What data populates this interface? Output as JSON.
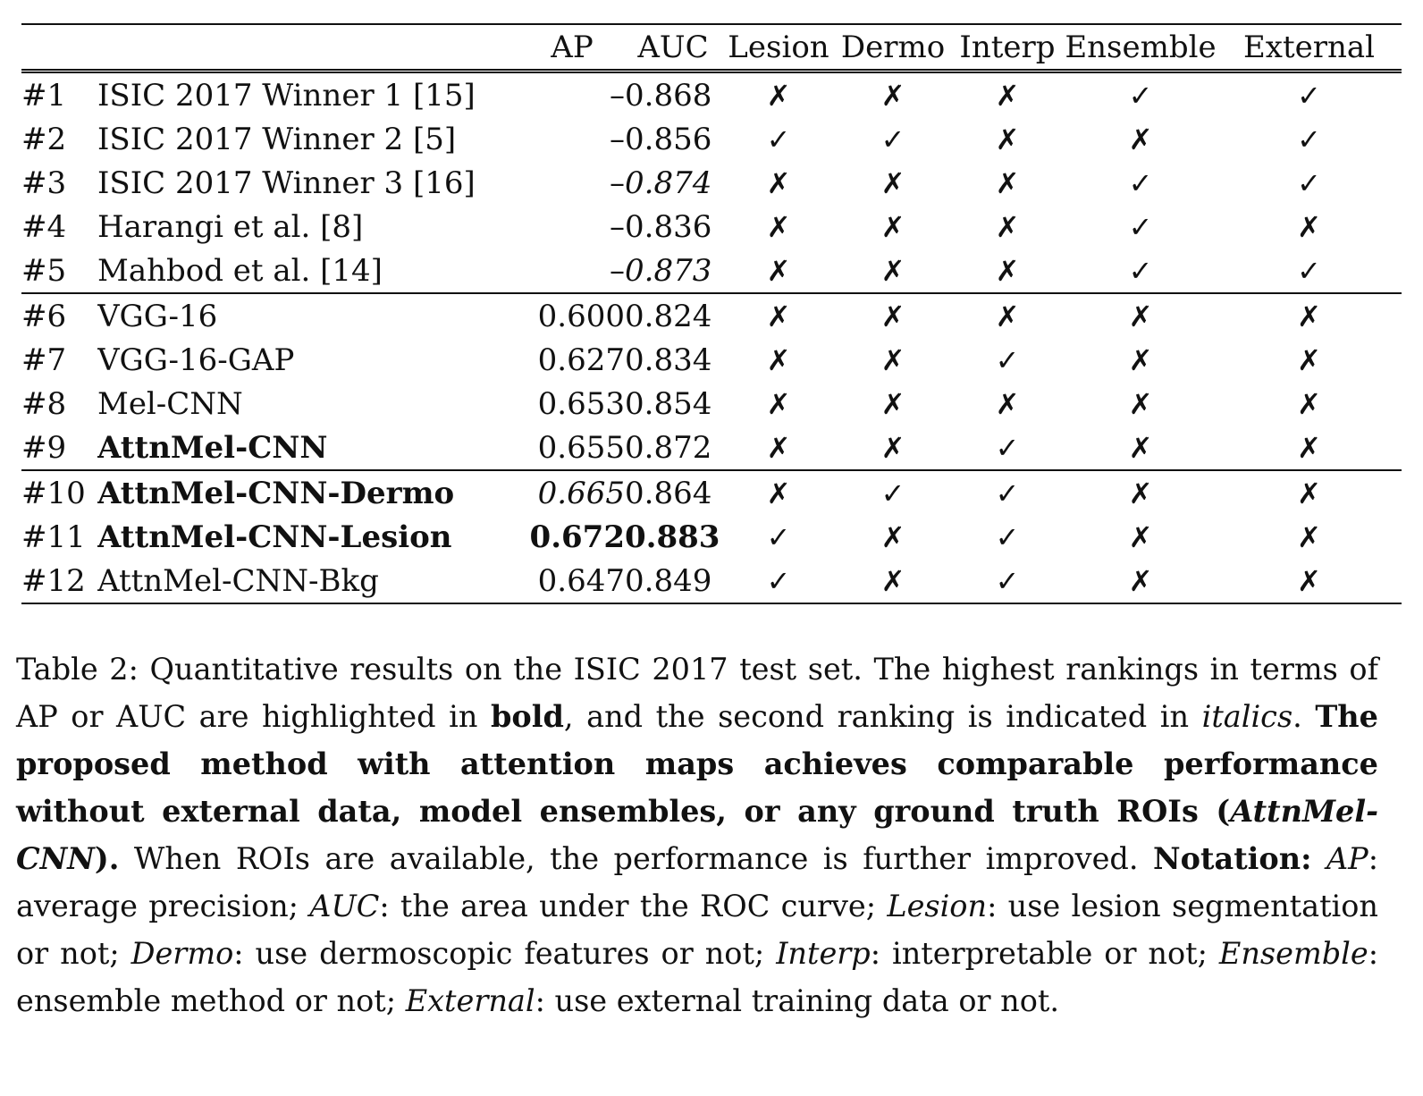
{
  "table": {
    "columns": [
      "",
      "",
      "AP",
      "AUC",
      "Lesion",
      "Dermo",
      "Interp",
      "Ensemble",
      "External"
    ],
    "rows": [
      {
        "num": "#1",
        "method": "ISIC 2017 Winner 1 [15]",
        "ap": "–",
        "auc": "0.868",
        "lesion": "✗",
        "dermo": "✗",
        "interp": "✗",
        "ensemble": "✓",
        "external": "✓"
      },
      {
        "num": "#2",
        "method": "ISIC 2017 Winner 2 [5]",
        "ap": "–",
        "auc": "0.856",
        "lesion": "✓",
        "dermo": "✓",
        "interp": "✗",
        "ensemble": "✗",
        "external": "✓"
      },
      {
        "num": "#3",
        "method": "ISIC 2017 Winner 3 [16]",
        "ap": "–",
        "auc": "0.874",
        "lesion": "✗",
        "dermo": "✗",
        "interp": "✗",
        "ensemble": "✓",
        "external": "✓"
      },
      {
        "num": "#4",
        "method": "Harangi et al. [8]",
        "ap": "–",
        "auc": "0.836",
        "lesion": "✗",
        "dermo": "✗",
        "interp": "✗",
        "ensemble": "✓",
        "external": "✗"
      },
      {
        "num": "#5",
        "method": "Mahbod et al. [14]",
        "ap": "–",
        "auc": "0.873",
        "lesion": "✗",
        "dermo": "✗",
        "interp": "✗",
        "ensemble": "✓",
        "external": "✓"
      },
      {
        "num": "#6",
        "method": "VGG-16",
        "ap": "0.600",
        "auc": "0.824",
        "lesion": "✗",
        "dermo": "✗",
        "interp": "✗",
        "ensemble": "✗",
        "external": "✗"
      },
      {
        "num": "#7",
        "method": "VGG-16-GAP",
        "ap": "0.627",
        "auc": "0.834",
        "lesion": "✗",
        "dermo": "✗",
        "interp": "✓",
        "ensemble": "✗",
        "external": "✗"
      },
      {
        "num": "#8",
        "method": "Mel-CNN",
        "ap": "0.653",
        "auc": "0.854",
        "lesion": "✗",
        "dermo": "✗",
        "interp": "✗",
        "ensemble": "✗",
        "external": "✗"
      },
      {
        "num": "#9",
        "method": "AttnMel-CNN",
        "ap": "0.655",
        "auc": "0.872",
        "lesion": "✗",
        "dermo": "✗",
        "interp": "✓",
        "ensemble": "✗",
        "external": "✗"
      },
      {
        "num": "#10",
        "method": "AttnMel-CNN-Dermo",
        "ap": "0.665",
        "auc": "0.864",
        "lesion": "✗",
        "dermo": "✓",
        "interp": "✓",
        "ensemble": "✗",
        "external": "✗"
      },
      {
        "num": "#11",
        "method": "AttnMel-CNN-Lesion",
        "ap": "0.672",
        "auc": "0.883",
        "lesion": "✓",
        "dermo": "✗",
        "interp": "✓",
        "ensemble": "✗",
        "external": "✗"
      },
      {
        "num": "#12",
        "method": "AttnMel-CNN-Bkg",
        "ap": "0.647",
        "auc": "0.849",
        "lesion": "✓",
        "dermo": "✗",
        "interp": "✓",
        "ensemble": "✗",
        "external": "✗"
      }
    ]
  },
  "caption": {
    "p1": "Table 2: Quantitative results on the ISIC 2017 test set. The highest rankings in terms of AP or AUC are highlighted in ",
    "bold_word": "bold",
    "p2": ", and the second ranking is indicated in ",
    "italic_word": "italics",
    "p3": ". ",
    "claim_a": "The proposed method with attention maps achieves comparable performance without external data, model ensembles, or any ground truth ROIs (",
    "claim_model": "AttnMel-CNN",
    "claim_b": ").",
    "p4": " When ROIs are available, the performance is further improved. ",
    "notation_label": "Notation:",
    "n_ap_term": "AP",
    "n_ap_def": ": average precision; ",
    "n_auc_term": "AUC",
    "n_auc_def": ": the area under the ROC curve; ",
    "n_lesion_term": "Lesion",
    "n_lesion_def": ": use lesion segmentation or not; ",
    "n_dermo_term": "Dermo",
    "n_dermo_def": ": use dermoscopic features or not; ",
    "n_interp_term": "Interp",
    "n_interp_def": ": interpretable or not; ",
    "n_ensemble_term": "Ensemble",
    "n_ensemble_def": ": ensemble method or not; ",
    "n_external_term": "External",
    "n_external_def": ": use external training data or not."
  }
}
